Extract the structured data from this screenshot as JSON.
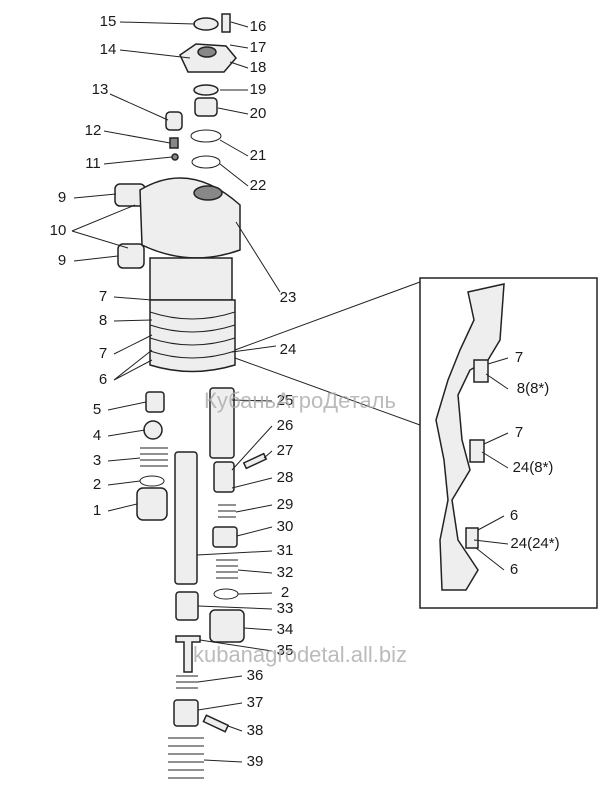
{
  "labels": [
    "15",
    "16",
    "14",
    "17",
    "18",
    "13",
    "19",
    "20",
    "12",
    "21",
    "11",
    "22",
    "9",
    "10",
    "9",
    "23",
    "7",
    "8",
    "7",
    "24",
    "6",
    "5",
    "25",
    "4",
    "26",
    "3",
    "27",
    "2",
    "28",
    "1",
    "29",
    "30",
    "31",
    "32",
    "2",
    "33",
    "34",
    "35",
    "36",
    "37",
    "38",
    "39"
  ],
  "inset_labels": [
    "7",
    "8(8*)",
    "7",
    "24(8*)",
    "6",
    "24(24*)",
    "6"
  ],
  "watermarks": [
    "КубаньАгроДеталь",
    "kubanagrodetal.all.biz"
  ]
}
